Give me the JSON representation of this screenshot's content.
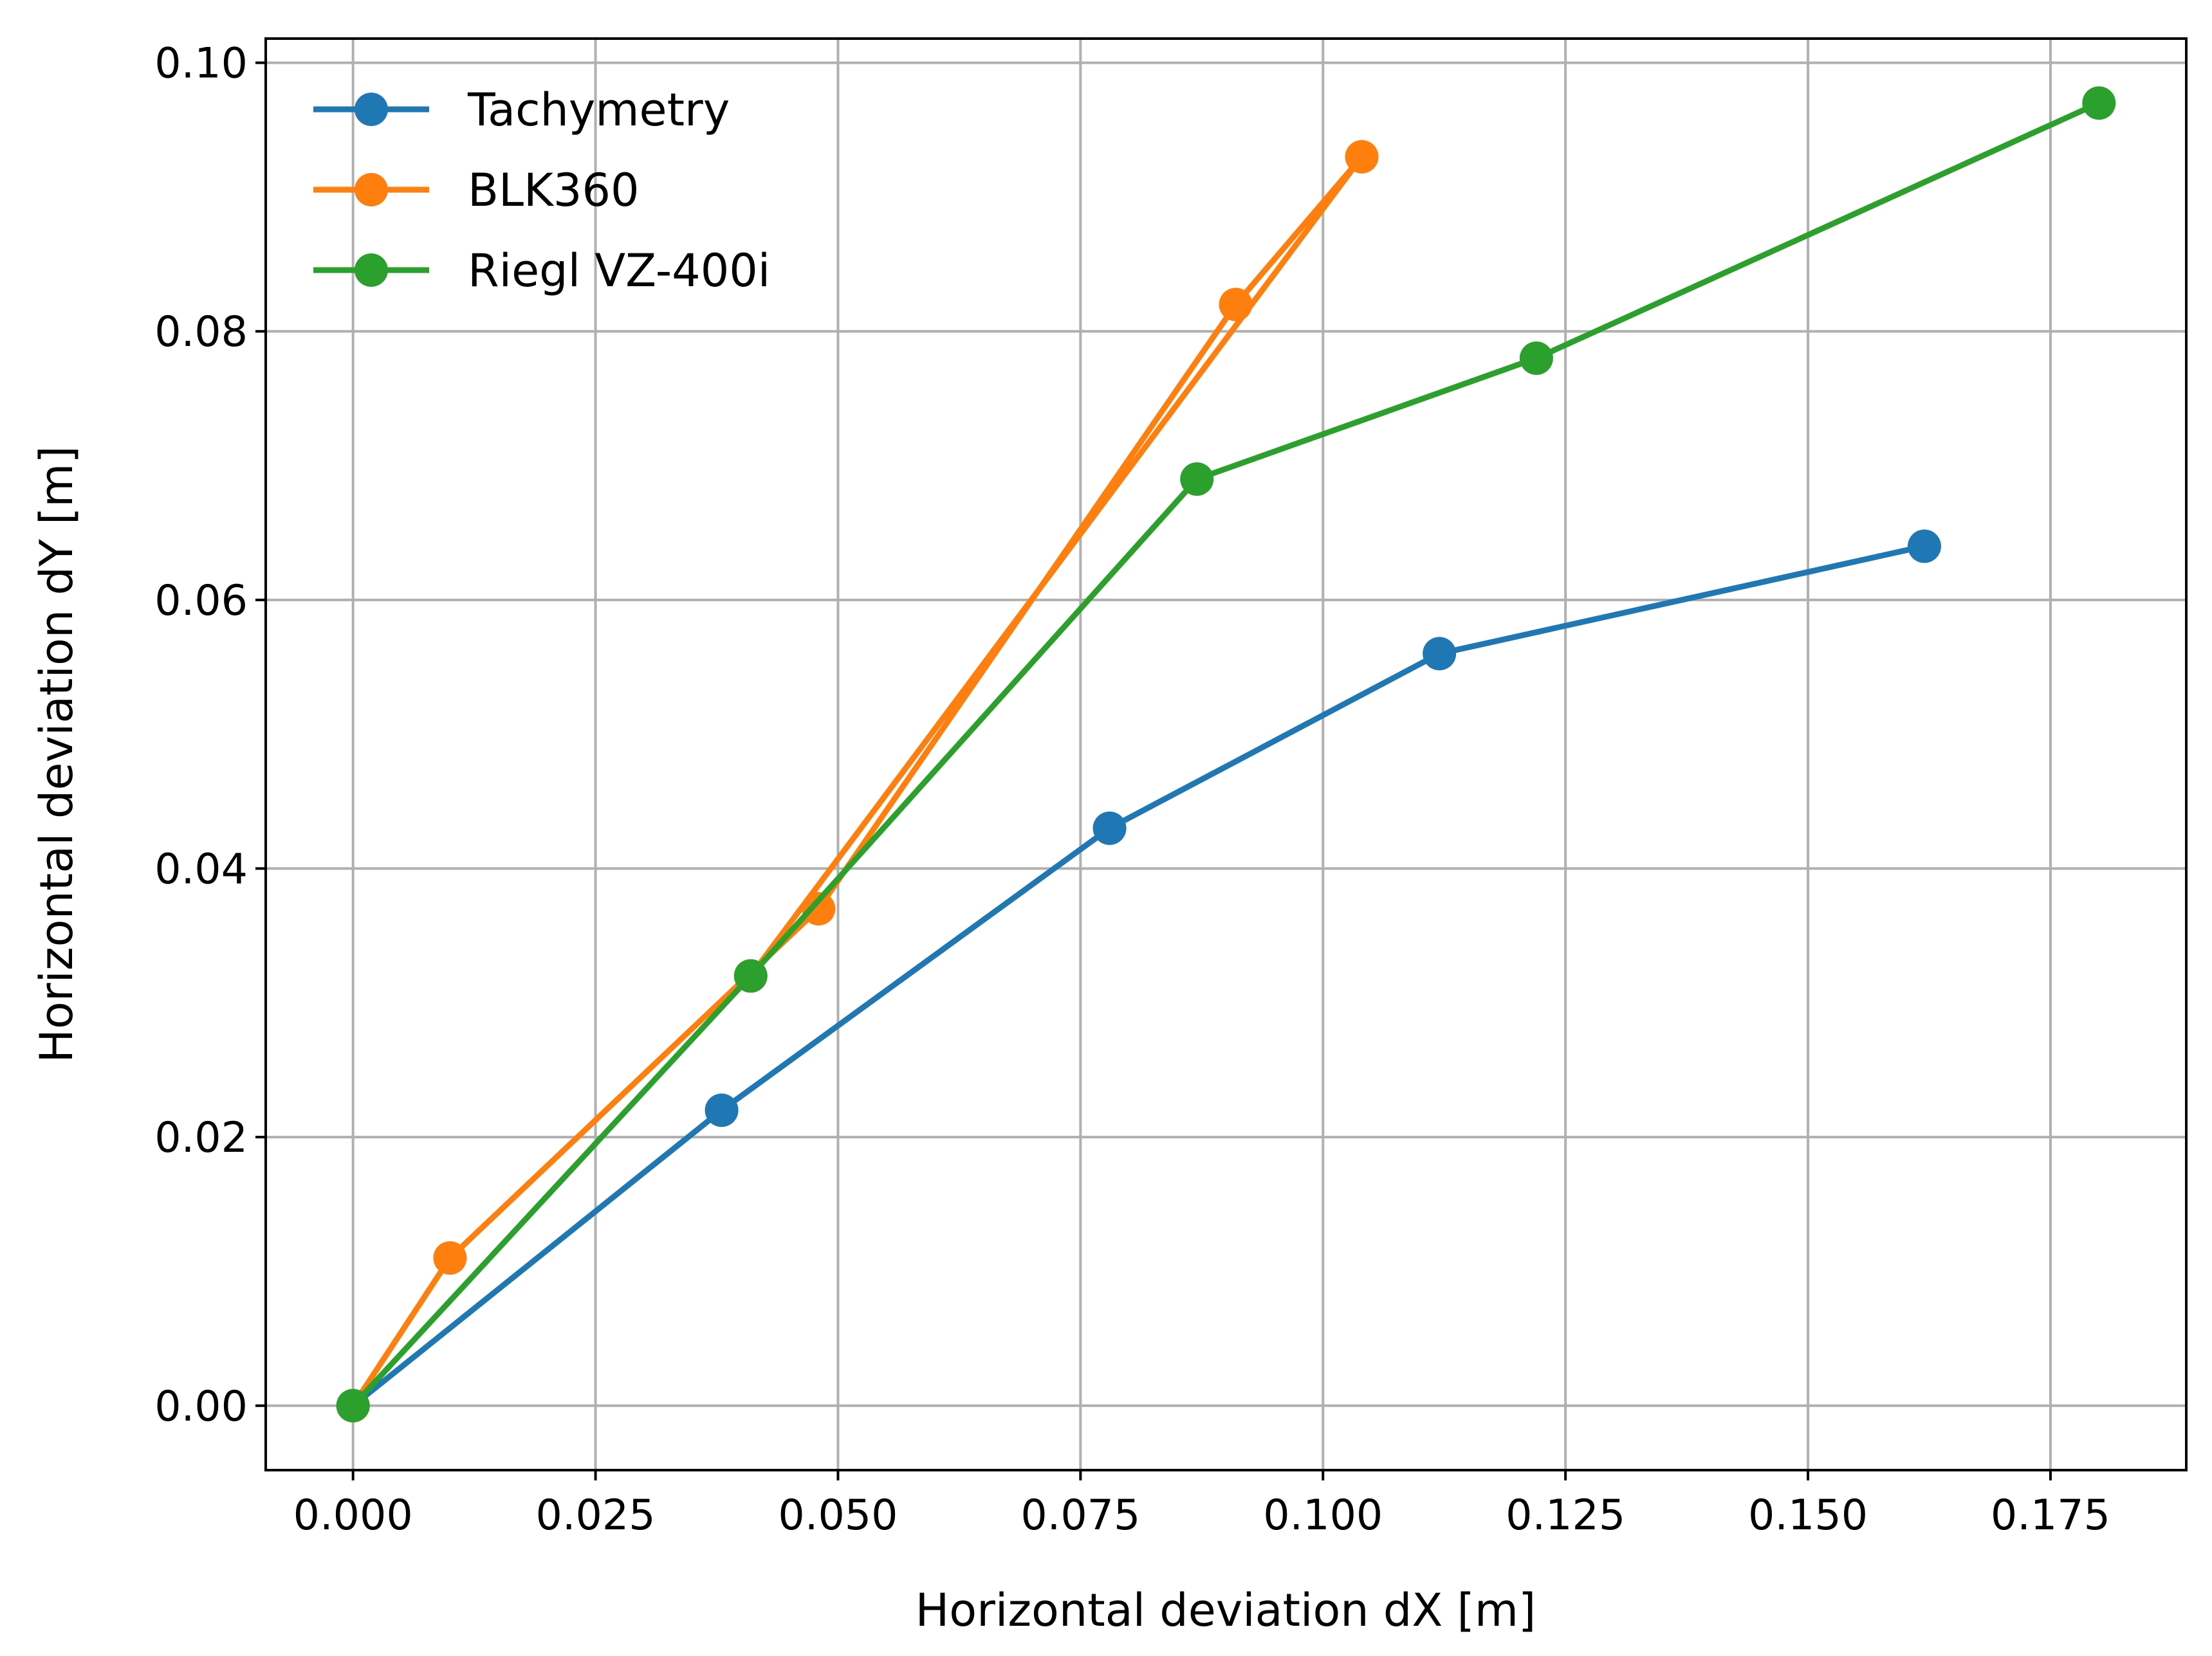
{
  "chart_data": {
    "type": "line",
    "xlabel": "Horizontal deviation dX [m]",
    "ylabel": "Horizontal deviation dY [m]",
    "xlim": [
      -0.009,
      0.189
    ],
    "ylim": [
      -0.0048,
      0.1018
    ],
    "xticks": [
      0.0,
      0.025,
      0.05,
      0.075,
      0.1,
      0.125,
      0.15,
      0.175
    ],
    "xtick_labels": [
      "0.000",
      "0.025",
      "0.050",
      "0.075",
      "0.100",
      "0.125",
      "0.150",
      "0.175"
    ],
    "yticks": [
      0.0,
      0.02,
      0.04,
      0.06,
      0.08,
      0.1
    ],
    "ytick_labels": [
      "0.00",
      "0.02",
      "0.04",
      "0.06",
      "0.08",
      "0.10"
    ],
    "grid": true,
    "legend_position": "top-left",
    "series": [
      {
        "name": "Tachymetry",
        "color": "#1f77b4",
        "x": [
          0.0,
          0.038,
          0.078,
          0.112,
          0.162
        ],
        "y": [
          0.0,
          0.022,
          0.043,
          0.056,
          0.064
        ]
      },
      {
        "name": "BLK360",
        "color": "#ff7f0e",
        "x": [
          0.0,
          0.01,
          0.048,
          0.091,
          0.104,
          0.041
        ],
        "y": [
          0.0,
          0.011,
          0.037,
          0.082,
          0.093,
          0.032
        ]
      },
      {
        "name": "Riegl VZ-400i",
        "color": "#2ca02c",
        "x": [
          0.0,
          0.041,
          0.087,
          0.122,
          0.18
        ],
        "y": [
          0.0,
          0.032,
          0.069,
          0.078,
          0.097
        ]
      }
    ]
  }
}
